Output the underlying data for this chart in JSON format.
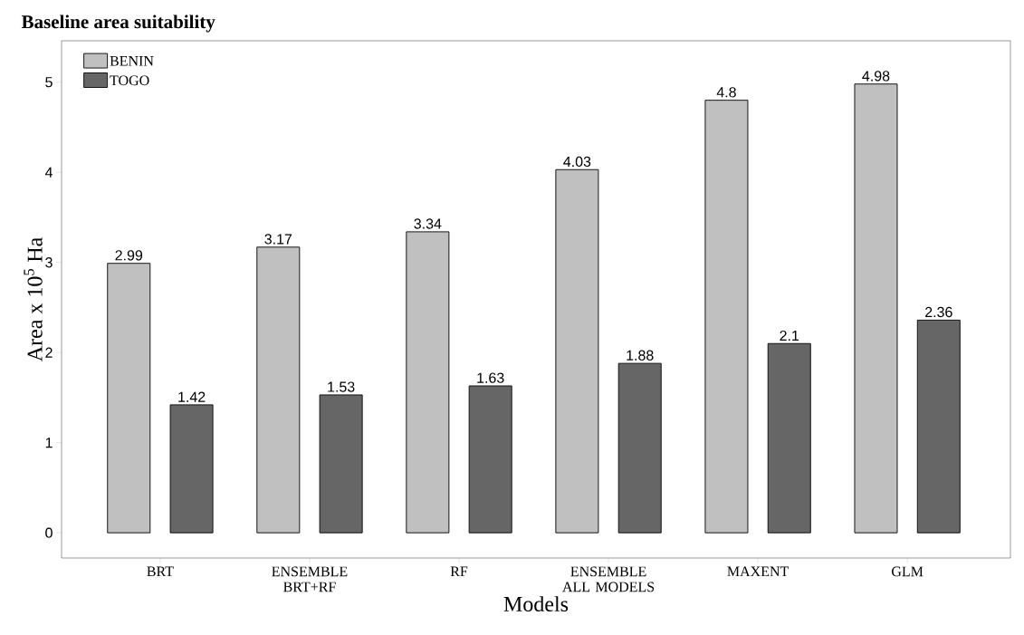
{
  "chart_data": {
    "type": "bar",
    "title": "Baseline area suitability",
    "xlabel": "Models",
    "ylabel": "Area x 10$^{5}$ Ha",
    "categories": [
      "BRT",
      "ENSEMBLE BRT+RF",
      "RF",
      "ENSEMBLE ALL MODELS",
      "MAXENT",
      "GLM"
    ],
    "series": [
      {
        "name": "BENIN",
        "color": "#c0c0c0",
        "values": [
          2.99,
          3.17,
          3.34,
          4.03,
          4.8,
          4.98
        ]
      },
      {
        "name": "TOGO",
        "color": "#666666",
        "values": [
          1.42,
          1.53,
          1.63,
          1.88,
          2.1,
          2.36
        ]
      }
    ],
    "ylim": [
      -0.28,
      5.46
    ],
    "yticks": [
      0,
      1,
      2,
      3,
      4,
      5
    ],
    "grid": false,
    "legend": "top left",
    "data_labels": true
  }
}
